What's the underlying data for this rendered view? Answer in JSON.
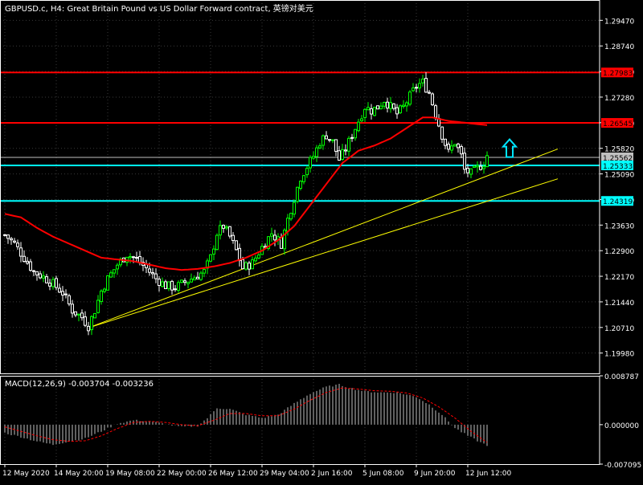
{
  "title": "GBPUSD.c, H4:  Great Britain Pound vs US Dollar Forward contract, 英镑对美元",
  "colors": {
    "background": "#000000",
    "frame": "#ffffff",
    "grid": "#3a3a3a",
    "candle_bull": "#00ff00",
    "candle_bear": "#ffffff",
    "ma": "#ff0000",
    "level_red": "#ff0000",
    "level_cyan": "#00ffff",
    "trendline": "#ffff00",
    "macd_hist": "#c0c0c0",
    "macd_signal": "#ff0000",
    "arrow": "#00e5ff"
  },
  "chart_data": [
    {
      "type": "candlestick",
      "panel": "price",
      "grid": true,
      "ylim": [
        1.194,
        1.3005
      ],
      "y_ticks": [
        "1.29470",
        "1.28740",
        "1.28010",
        "1.27280",
        "1.26550",
        "1.25820",
        "1.25090",
        "1.24360",
        "1.23630",
        "1.22900",
        "1.22170",
        "1.21440",
        "1.20710",
        "1.19980"
      ],
      "x_ticks": [
        "12 May 2020",
        "14 May 20:00",
        "19 May 08:00",
        "22 May 00:00",
        "26 May 12:00",
        "29 May 04:00",
        "2 Jun 16:00",
        "5 Jun 08:00",
        "9 Jun 20:00",
        "12 Jun 12:00"
      ],
      "price_path": [
        [
          0,
          1.2335
        ],
        [
          3,
          1.231
        ],
        [
          6,
          1.227
        ],
        [
          9,
          1.223
        ],
        [
          12,
          1.2215
        ],
        [
          15,
          1.2195
        ],
        [
          18,
          1.217
        ],
        [
          21,
          1.212
        ],
        [
          24,
          1.21
        ],
        [
          26,
          1.2075
        ],
        [
          28,
          1.212
        ],
        [
          30,
          1.2175
        ],
        [
          32,
          1.221
        ],
        [
          35,
          1.225
        ],
        [
          38,
          1.228
        ],
        [
          41,
          1.2265
        ],
        [
          44,
          1.224
        ],
        [
          47,
          1.221
        ],
        [
          50,
          1.219
        ],
        [
          53,
          1.2185
        ],
        [
          56,
          1.22
        ],
        [
          59,
          1.2215
        ],
        [
          62,
          1.223
        ],
        [
          64,
          1.227
        ],
        [
          66,
          1.234
        ],
        [
          68,
          1.236
        ],
        [
          70,
          1.233
        ],
        [
          72,
          1.229
        ],
        [
          74,
          1.224
        ],
        [
          77,
          1.2255
        ],
        [
          80,
          1.23
        ],
        [
          83,
          1.234
        ],
        [
          86,
          1.231
        ],
        [
          88,
          1.238
        ],
        [
          90,
          1.244
        ],
        [
          92,
          1.25
        ],
        [
          94,
          1.253
        ],
        [
          96,
          1.256
        ],
        [
          98,
          1.26
        ],
        [
          100,
          1.262
        ],
        [
          102,
          1.26
        ],
        [
          104,
          1.255
        ],
        [
          106,
          1.258
        ],
        [
          108,
          1.262
        ],
        [
          110,
          1.266
        ],
        [
          112,
          1.27
        ],
        [
          114,
          1.269
        ],
        [
          116,
          1.27
        ],
        [
          118,
          1.272
        ],
        [
          120,
          1.27
        ],
        [
          122,
          1.268
        ],
        [
          124,
          1.27
        ],
        [
          126,
          1.273
        ],
        [
          128,
          1.276
        ],
        [
          130,
          1.277
        ],
        [
          132,
          1.274
        ],
        [
          134,
          1.268
        ],
        [
          136,
          1.262
        ],
        [
          138,
          1.257
        ],
        [
          140,
          1.26
        ],
        [
          142,
          1.256
        ],
        [
          143,
          1.252
        ],
        [
          145,
          1.251
        ],
        [
          147,
          1.2525
        ],
        [
          149,
          1.254
        ],
        [
          150,
          1.2562
        ]
      ],
      "series": [
        {
          "kind": "moving_average",
          "values": [
            [
              0,
              1.2395
            ],
            [
              5,
              1.2385
            ],
            [
              10,
              1.2355
            ],
            [
              15,
              1.233
            ],
            [
              20,
              1.231
            ],
            [
              25,
              1.229
            ],
            [
              30,
              1.227
            ],
            [
              35,
              1.2265
            ],
            [
              40,
              1.226
            ],
            [
              45,
              1.225
            ],
            [
              50,
              1.224
            ],
            [
              55,
              1.2235
            ],
            [
              60,
              1.2238
            ],
            [
              65,
              1.2245
            ],
            [
              70,
              1.2255
            ],
            [
              75,
              1.227
            ],
            [
              80,
              1.229
            ],
            [
              85,
              1.232
            ],
            [
              90,
              1.236
            ],
            [
              95,
              1.242
            ],
            [
              100,
              1.248
            ],
            [
              105,
              1.254
            ],
            [
              110,
              1.2575
            ],
            [
              115,
              1.259
            ],
            [
              120,
              1.261
            ],
            [
              125,
              1.264
            ],
            [
              130,
              1.267
            ],
            [
              133,
              1.267
            ],
            [
              138,
              1.266
            ],
            [
              143,
              1.2655
            ],
            [
              148,
              1.265
            ],
            [
              150,
              1.2648
            ]
          ]
        }
      ],
      "levels": [
        {
          "value": 1.27983,
          "label": "1.27983",
          "color": "#ff0000"
        },
        {
          "value": 1.26545,
          "label": "1.26545",
          "color": "#ff0000"
        },
        {
          "value": 1.25562,
          "label": "1.25562",
          "color": "#c0c0c0"
        },
        {
          "value": 1.25333,
          "label": "1.25333",
          "color": "#00ffff"
        },
        {
          "value": 1.24319,
          "label": "1.24319",
          "color": "#00ffff"
        }
      ],
      "trendlines": [
        {
          "from": [
            26,
            1.207
          ],
          "to": [
            172,
            1.258
          ]
        },
        {
          "from": [
            26,
            1.207
          ],
          "to": [
            172,
            1.2495
          ]
        }
      ],
      "arrow": {
        "at": [
          157,
          1.258
        ],
        "direction": "up"
      }
    },
    {
      "type": "bar",
      "panel": "indicator",
      "title": "MACD(12,26,9) -0.003704 -0.003236",
      "ylim": [
        -0.007095,
        0.008787
      ],
      "y_ticks": [
        "0.008787",
        "0.000000",
        "-0.007095"
      ],
      "histogram_path": [
        [
          0,
          -0.0015
        ],
        [
          5,
          -0.0022
        ],
        [
          10,
          -0.003
        ],
        [
          15,
          -0.0036
        ],
        [
          20,
          -0.003
        ],
        [
          25,
          -0.0025
        ],
        [
          30,
          -0.0012
        ],
        [
          35,
          0.0002
        ],
        [
          40,
          0.0008
        ],
        [
          45,
          0.0006
        ],
        [
          50,
          0.0001
        ],
        [
          55,
          -0.0004
        ],
        [
          60,
          -0.0002
        ],
        [
          63,
          0.0012
        ],
        [
          66,
          0.003
        ],
        [
          70,
          0.0028
        ],
        [
          75,
          0.0018
        ],
        [
          80,
          0.0012
        ],
        [
          85,
          0.0018
        ],
        [
          90,
          0.0038
        ],
        [
          95,
          0.0056
        ],
        [
          100,
          0.0068
        ],
        [
          104,
          0.0072
        ],
        [
          108,
          0.0065
        ],
        [
          112,
          0.006
        ],
        [
          117,
          0.0058
        ],
        [
          122,
          0.0058
        ],
        [
          128,
          0.005
        ],
        [
          132,
          0.0036
        ],
        [
          136,
          0.0018
        ],
        [
          140,
          -0.0006
        ],
        [
          144,
          -0.002
        ],
        [
          148,
          -0.0032
        ],
        [
          150,
          -0.0037
        ]
      ],
      "signal_path": [
        [
          0,
          -0.0004
        ],
        [
          5,
          -0.0012
        ],
        [
          10,
          -0.002
        ],
        [
          15,
          -0.0027
        ],
        [
          20,
          -0.003
        ],
        [
          25,
          -0.0029
        ],
        [
          30,
          -0.002
        ],
        [
          35,
          -0.0007
        ],
        [
          40,
          0.0004
        ],
        [
          45,
          0.0006
        ],
        [
          50,
          0.0004
        ],
        [
          55,
          0.0
        ],
        [
          60,
          -0.0002
        ],
        [
          65,
          0.0008
        ],
        [
          70,
          0.002
        ],
        [
          75,
          0.002
        ],
        [
          80,
          0.0016
        ],
        [
          85,
          0.0016
        ],
        [
          90,
          0.0028
        ],
        [
          95,
          0.0044
        ],
        [
          100,
          0.0058
        ],
        [
          105,
          0.0066
        ],
        [
          110,
          0.0064
        ],
        [
          115,
          0.0061
        ],
        [
          120,
          0.006
        ],
        [
          125,
          0.0057
        ],
        [
          130,
          0.0048
        ],
        [
          135,
          0.0032
        ],
        [
          140,
          0.0012
        ],
        [
          145,
          -0.0012
        ],
        [
          150,
          -0.0032
        ]
      ]
    }
  ]
}
